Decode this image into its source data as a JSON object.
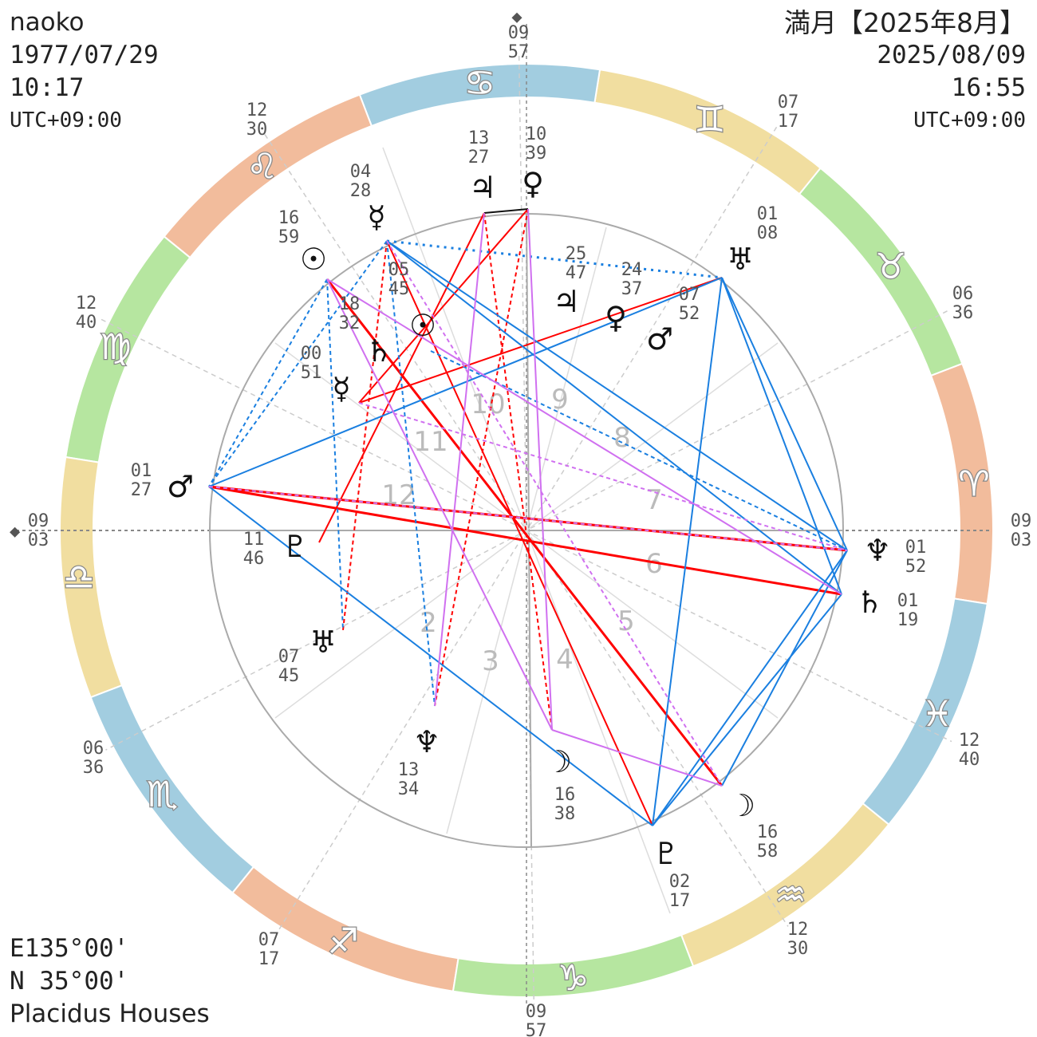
{
  "natal": {
    "name": "naoko",
    "date": "1977/07/29",
    "time": "10:17",
    "tz": "UTC+09:00"
  },
  "transit": {
    "title": "満月【2025年8月】",
    "date": "2025/08/09",
    "time": "16:55",
    "tz": "UTC+09:00"
  },
  "location": {
    "lon": "E135°00'",
    "lat": "N  35°00'",
    "house_system": "Placidus Houses"
  },
  "colors": {
    "fire": "#f2bc9c",
    "earth": "#b6e6a0",
    "air": "#f1dea0",
    "water": "#a2cde0",
    "aspect_hard": "#ff0000",
    "aspect_soft": "#1a7fe0",
    "aspect_minor": "#d070f0"
  },
  "signs": [
    {
      "name": "aries",
      "glyph": "♈︎",
      "element": "fire"
    },
    {
      "name": "taurus",
      "glyph": "♉︎",
      "element": "earth"
    },
    {
      "name": "gemini",
      "glyph": "♊︎",
      "element": "air"
    },
    {
      "name": "cancer",
      "glyph": "♋︎",
      "element": "water"
    },
    {
      "name": "leo",
      "glyph": "♌︎",
      "element": "fire"
    },
    {
      "name": "virgo",
      "glyph": "♍︎",
      "element": "earth"
    },
    {
      "name": "libra",
      "glyph": "♎︎",
      "element": "air"
    },
    {
      "name": "scorpio",
      "glyph": "♏︎",
      "element": "water"
    },
    {
      "name": "sagittarius",
      "glyph": "♐︎",
      "element": "fire"
    },
    {
      "name": "capricorn",
      "glyph": "♑︎",
      "element": "earth"
    },
    {
      "name": "aquarius",
      "glyph": "♒︎",
      "element": "air"
    },
    {
      "name": "pisces",
      "glyph": "♓︎",
      "element": "water"
    }
  ],
  "ascendant_longitude": 189.05,
  "cusps": [
    {
      "label": "mc",
      "d": "09",
      "m": "57"
    },
    {
      "label": "gemini",
      "d": "07",
      "m": "17"
    },
    {
      "label": "taurus",
      "d": "06",
      "m": "36"
    },
    {
      "label": "dsc",
      "d": "09",
      "m": "03"
    },
    {
      "label": "pisces",
      "d": "12",
      "m": "40"
    },
    {
      "label": "aquarius",
      "d": "12",
      "m": "30"
    },
    {
      "label": "ic",
      "d": "09",
      "m": "57"
    },
    {
      "label": "sagittarius",
      "d": "07",
      "m": "17"
    },
    {
      "label": "scorpio",
      "d": "06",
      "m": "36"
    },
    {
      "label": "asc",
      "d": "09",
      "m": "03"
    },
    {
      "label": "virgo",
      "d": "12",
      "m": "40"
    },
    {
      "label": "leo",
      "d": "12",
      "m": "30"
    }
  ],
  "house_numbers": [
    "2",
    "3",
    "4",
    "5",
    "6",
    "7",
    "8",
    "9",
    "10",
    "11",
    "12"
  ],
  "transit_planets": [
    {
      "name": "sun",
      "glyph": "☉",
      "d": "16",
      "m": "59"
    },
    {
      "name": "mercury",
      "glyph": "☿",
      "d": "04",
      "m": "28"
    },
    {
      "name": "jupiter",
      "glyph": "♃",
      "d": "13",
      "m": "27"
    },
    {
      "name": "venus",
      "glyph": "♀",
      "d": "10",
      "m": "39"
    },
    {
      "name": "uranus",
      "glyph": "♅",
      "d": "01",
      "m": "08"
    },
    {
      "name": "neptune",
      "glyph": "♆",
      "d": "01",
      "m": "52"
    },
    {
      "name": "saturn",
      "glyph": "♄",
      "d": "01",
      "m": "19"
    },
    {
      "name": "pluto",
      "glyph": "♇",
      "d": "02",
      "m": "17"
    },
    {
      "name": "moon",
      "glyph": "☽",
      "d": "16",
      "m": "58"
    },
    {
      "name": "mars",
      "glyph": "♂",
      "d": "01",
      "m": "27"
    }
  ],
  "natal_planets": [
    {
      "name": "jupiter",
      "glyph": "♃",
      "d": "25",
      "m": "47"
    },
    {
      "name": "venus",
      "glyph": "♀",
      "d": "24",
      "m": "37"
    },
    {
      "name": "mars",
      "glyph": "♂",
      "d": "07",
      "m": "52"
    },
    {
      "name": "sun",
      "glyph": "☉",
      "d": "05",
      "m": "45"
    },
    {
      "name": "saturn",
      "glyph": "♄",
      "d": "18",
      "m": "32"
    },
    {
      "name": "mercury",
      "glyph": "☿",
      "d": "00",
      "m": "51"
    },
    {
      "name": "pluto",
      "glyph": "♇",
      "d": "11",
      "m": "46"
    },
    {
      "name": "uranus",
      "glyph": "♅",
      "d": "07",
      "m": "45"
    },
    {
      "name": "neptune",
      "glyph": "♆",
      "d": "13",
      "m": "34"
    },
    {
      "name": "moon",
      "glyph": "☽",
      "d": "16",
      "m": "38"
    }
  ]
}
